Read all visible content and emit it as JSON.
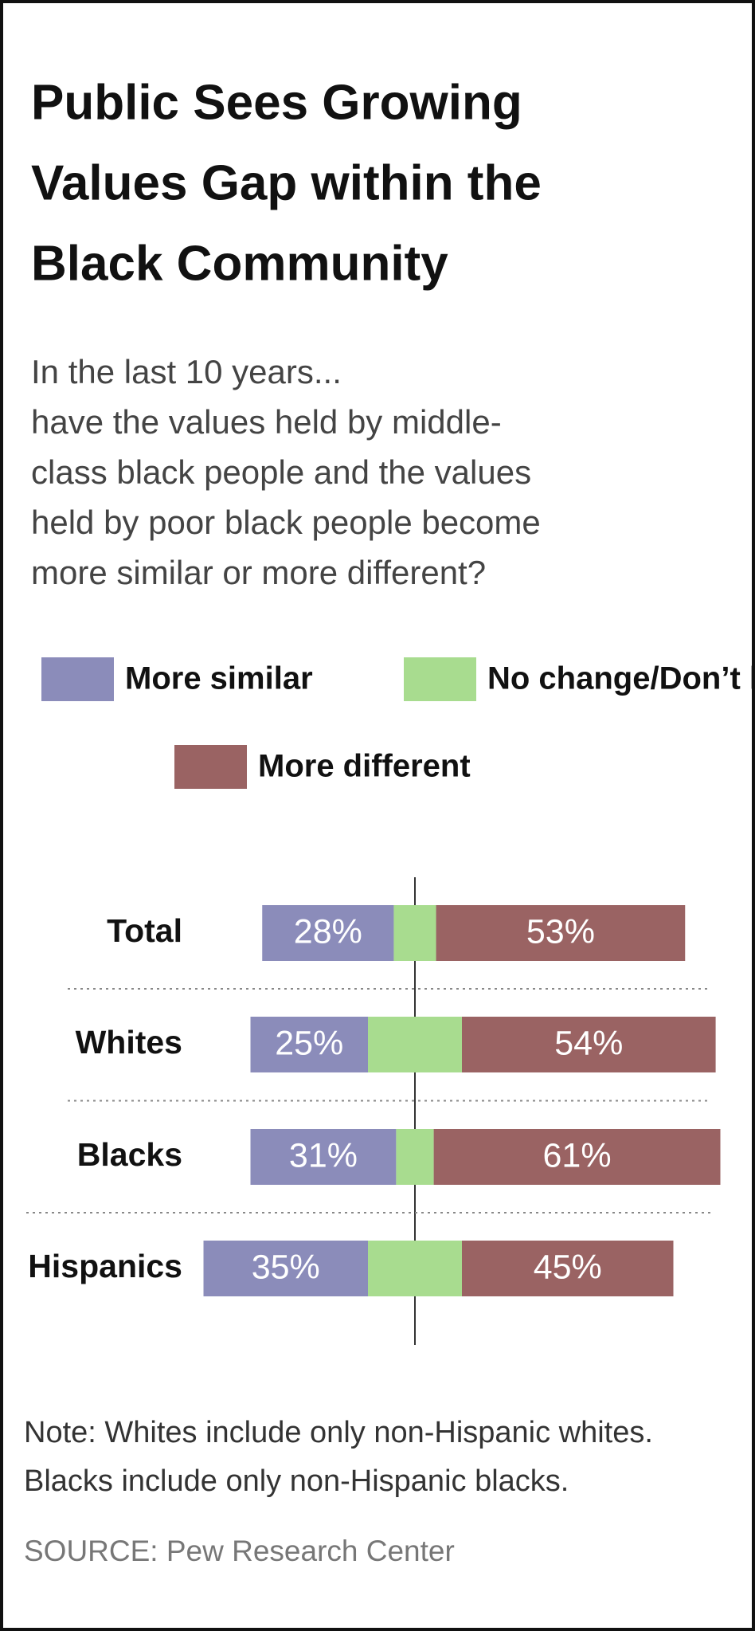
{
  "chart_data": {
    "type": "diverging_bar",
    "title": [
      "Public Sees Growing",
      "Values Gap within the",
      "Black Community"
    ],
    "subtitle": [
      "In the last 10 years...",
      "have the values held by middle-",
      "class black people and the values",
      "held by poor black people become",
      "more similar or more different?"
    ],
    "categories": [
      "Total",
      "Whites",
      "Blacks",
      "Hispanics"
    ],
    "series": [
      {
        "name": "More similar",
        "color": "#8b8cba",
        "values": [
          28,
          25,
          31,
          35
        ],
        "value_labels": [
          "28%",
          "25%",
          "31%",
          "35%"
        ]
      },
      {
        "name": "No change/Don’t know",
        "color": "#a8dc8f",
        "values": [
          9,
          20,
          8,
          20
        ]
      },
      {
        "name": "More different",
        "color": "#9a6363",
        "values": [
          53,
          54,
          61,
          45
        ],
        "value_labels": [
          "53%",
          "54%",
          "61%",
          "45%"
        ]
      }
    ],
    "notes": [
      "Note: Whites include only non-Hispanic whites.",
      "Blacks include only non-Hispanic blacks."
    ],
    "source": "SOURCE: Pew Research Center"
  }
}
